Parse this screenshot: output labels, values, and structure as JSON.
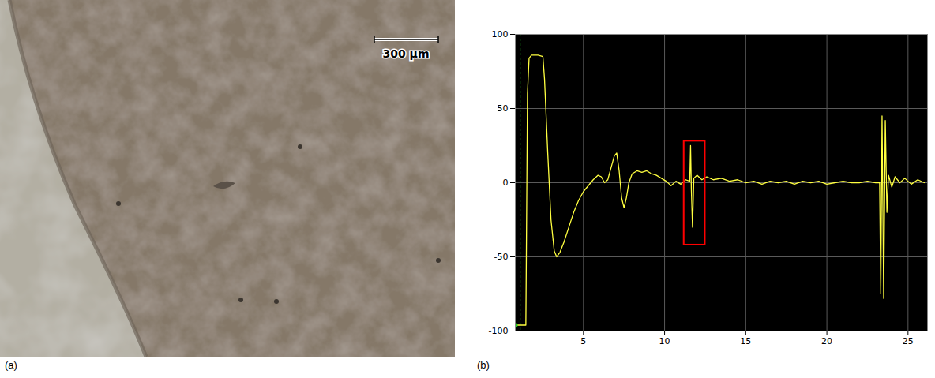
{
  "chart_data": [
    {
      "type": "image",
      "title": "(a)",
      "annotations": [
        "300 μm"
      ]
    },
    {
      "type": "line",
      "title": "(b)",
      "x": [
        0.8,
        1.45,
        1.55,
        1.65,
        1.8,
        2.2,
        2.5,
        2.6,
        2.8,
        3.0,
        3.2,
        3.35,
        3.55,
        3.8,
        4.1,
        4.4,
        4.7,
        5.0,
        5.3,
        5.6,
        5.9,
        6.1,
        6.3,
        6.5,
        6.7,
        6.9,
        7.05,
        7.2,
        7.35,
        7.5,
        7.65,
        7.8,
        8.0,
        8.3,
        8.6,
        8.9,
        9.2,
        9.5,
        9.8,
        10.1,
        10.4,
        10.7,
        11.0,
        11.3,
        11.55,
        11.6,
        11.65,
        11.72,
        11.8,
        12.0,
        12.3,
        12.6,
        13.0,
        13.5,
        14.0,
        14.5,
        15.0,
        15.5,
        16.0,
        16.5,
        17.0,
        17.5,
        18.0,
        18.5,
        19.0,
        19.5,
        20.0,
        20.5,
        21.0,
        21.5,
        22.0,
        22.5,
        23.0,
        23.25,
        23.32,
        23.4,
        23.5,
        23.6,
        23.7,
        23.8,
        24.0,
        24.2,
        24.5,
        24.8,
        25.2,
        25.6,
        26.0
      ],
      "values": [
        -96,
        -96,
        60,
        84,
        86,
        86,
        85,
        70,
        20,
        -25,
        -46,
        -50,
        -47,
        -40,
        -30,
        -20,
        -12,
        -6,
        -2,
        2,
        5,
        4,
        0,
        2,
        10,
        18,
        20,
        8,
        -10,
        -17,
        -10,
        0,
        6,
        8,
        7,
        8,
        6,
        5,
        3,
        1,
        -2,
        1,
        -1,
        2,
        1,
        25,
        -5,
        -30,
        3,
        5,
        2,
        4,
        2,
        3,
        1,
        2,
        0,
        1,
        -1,
        1,
        0,
        1,
        -1,
        1,
        0,
        1,
        -1,
        0,
        1,
        0,
        0,
        1,
        0,
        0,
        -75,
        45,
        -78,
        42,
        -20,
        5,
        -3,
        4,
        0,
        3,
        -1,
        2,
        0
      ],
      "color": "#ffff40",
      "xlim": [
        0.8,
        26.2
      ],
      "xticks": [
        5,
        10,
        15,
        20,
        25
      ],
      "ylim": [
        -100,
        100
      ],
      "yticks": [
        -100,
        -50,
        0,
        50,
        100
      ],
      "grid": true,
      "cursor_x": 1.1,
      "highlight": {
        "x": [
          11.2,
          12.5
        ],
        "y": [
          -42,
          28
        ]
      }
    }
  ]
}
